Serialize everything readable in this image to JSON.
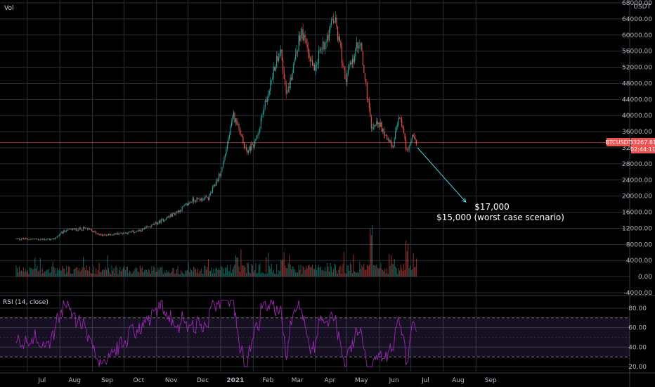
{
  "chart_data": [
    {
      "type": "candlestick",
      "panel": "price",
      "symbol": "BTCUSDT",
      "vol_label": "Vol",
      "currency": "USDT",
      "last_price": "33267.81",
      "countdown": "02:44:11",
      "x_tick_labels": [
        "Jul",
        "Aug",
        "Sep",
        "Oct",
        "Nov",
        "Dec",
        "2021",
        "Feb",
        "Mar",
        "Apr",
        "May",
        "Jun",
        "Jul",
        "Aug",
        "Sep"
      ],
      "y_tick_labels": [
        "68000.00",
        "64000.00",
        "60000.00",
        "56000.00",
        "52000.00",
        "48000.00",
        "44000.00",
        "40000.00",
        "36000.00",
        "32000.00",
        "28000.00",
        "24000.00",
        "20000.00",
        "16000.00",
        "12000.00",
        "8000.00",
        "4000.00",
        "0.00",
        "-4000.00"
      ],
      "ylim": [
        -4000,
        68000
      ],
      "price_path": [
        {
          "date": "2020-06-15",
          "price": 9400
        },
        {
          "date": "2020-07-20",
          "price": 9200
        },
        {
          "date": "2020-08-01",
          "price": 11500
        },
        {
          "date": "2020-08-20",
          "price": 12000
        },
        {
          "date": "2020-09-05",
          "price": 10200
        },
        {
          "date": "2020-10-10",
          "price": 11300
        },
        {
          "date": "2020-10-25",
          "price": 13000
        },
        {
          "date": "2020-11-15",
          "price": 16000
        },
        {
          "date": "2020-11-30",
          "price": 19000
        },
        {
          "date": "2020-12-15",
          "price": 19500
        },
        {
          "date": "2020-12-27",
          "price": 26000
        },
        {
          "date": "2021-01-08",
          "price": 40000
        },
        {
          "date": "2021-01-20",
          "price": 31000
        },
        {
          "date": "2021-01-28",
          "price": 33000
        },
        {
          "date": "2021-02-10",
          "price": 46000
        },
        {
          "date": "2021-02-21",
          "price": 57000
        },
        {
          "date": "2021-02-28",
          "price": 45000
        },
        {
          "date": "2021-03-13",
          "price": 61000
        },
        {
          "date": "2021-03-25",
          "price": 52000
        },
        {
          "date": "2021-04-14",
          "price": 64000
        },
        {
          "date": "2021-04-25",
          "price": 49000
        },
        {
          "date": "2021-05-08",
          "price": 59000
        },
        {
          "date": "2021-05-19",
          "price": 37000
        },
        {
          "date": "2021-05-25",
          "price": 39000
        },
        {
          "date": "2021-06-08",
          "price": 32000
        },
        {
          "date": "2021-06-15",
          "price": 40000
        },
        {
          "date": "2021-06-22",
          "price": 31000
        },
        {
          "date": "2021-06-28",
          "price": 35500
        },
        {
          "date": "2021-07-01",
          "price": 33268
        }
      ],
      "forecast_arrow": {
        "from": {
          "date": "2021-07-02",
          "price": 32000
        },
        "to": {
          "date": "2021-08-17",
          "price": 18500
        }
      },
      "annotations": [
        "$17,000",
        "$15,000 (worst case scenario)"
      ],
      "volume_spikes": [
        {
          "date": "2021-01-11",
          "value": 6500
        },
        {
          "date": "2021-02-23",
          "value": 5000
        },
        {
          "date": "2021-05-19",
          "value": 14000
        },
        {
          "date": "2021-06-22",
          "value": 9000
        }
      ],
      "colors": {
        "up": "#26a69a",
        "down": "#ef5350",
        "price_line": "#ef5350",
        "grid": "#2a2e39"
      }
    },
    {
      "type": "line",
      "panel": "indicator",
      "title": "RSI (14, close)",
      "y_tick_labels": [
        "80.00",
        "60.00",
        "40.00",
        "20.00"
      ],
      "ylim": [
        15,
        90
      ],
      "bands": [
        30,
        70
      ],
      "colors": {
        "line": "#9c27b0",
        "band_fill": "rgba(126,87,194,0.18)",
        "band_edge": "#787b86"
      }
    }
  ]
}
